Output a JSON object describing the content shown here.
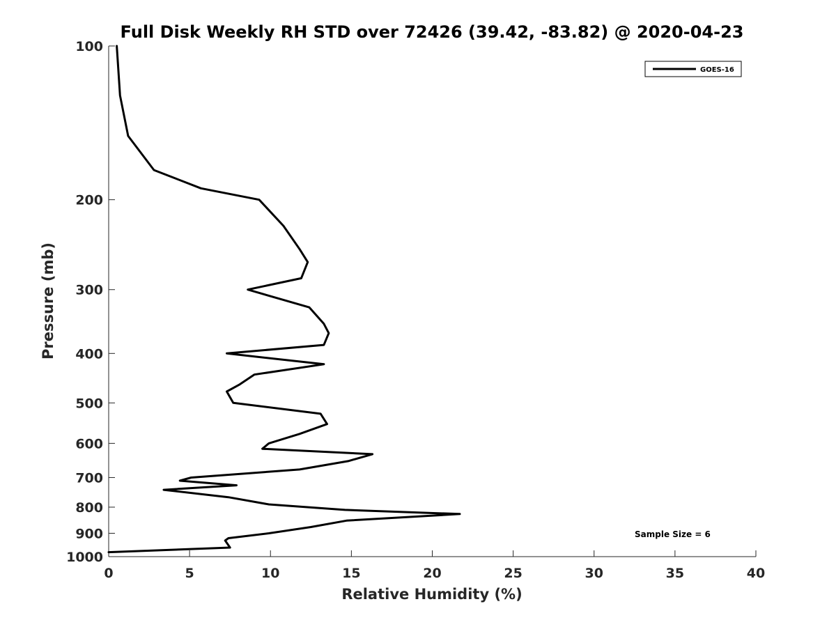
{
  "chart_data": {
    "type": "line",
    "title": "Full Disk Weekly RH STD over 72426 (39.42, -83.82) @ 2020-04-23",
    "xlabel": "Relative Humidity (%)",
    "ylabel": "Pressure (mb)",
    "xlim": [
      0,
      40
    ],
    "ylim": [
      1000,
      100
    ],
    "y_scale": "log",
    "x_ticks": [
      "0",
      "5",
      "10",
      "15",
      "20",
      "25",
      "30",
      "35",
      "40"
    ],
    "y_ticks": [
      "100",
      "200",
      "300",
      "400",
      "500",
      "600",
      "700",
      "800",
      "900",
      "1000"
    ],
    "grid": false,
    "legend_position": "top-right",
    "annotation": "Sample Size = 6",
    "series": [
      {
        "name": "GOES-16",
        "color": "#000000",
        "points": [
          [
            0.5,
            100
          ],
          [
            0.7,
            125
          ],
          [
            1.2,
            150
          ],
          [
            2.8,
            175
          ],
          [
            5.7,
            190
          ],
          [
            9.3,
            200
          ],
          [
            10.8,
            225
          ],
          [
            11.8,
            250
          ],
          [
            12.3,
            265
          ],
          [
            11.9,
            285
          ],
          [
            8.6,
            300
          ],
          [
            12.4,
            325
          ],
          [
            13.3,
            350
          ],
          [
            13.6,
            365
          ],
          [
            13.3,
            385
          ],
          [
            7.3,
            400
          ],
          [
            13.3,
            420
          ],
          [
            9.0,
            440
          ],
          [
            8.1,
            460
          ],
          [
            7.3,
            475
          ],
          [
            7.7,
            500
          ],
          [
            13.1,
            525
          ],
          [
            13.5,
            550
          ],
          [
            11.8,
            575
          ],
          [
            9.9,
            600
          ],
          [
            9.5,
            615
          ],
          [
            16.3,
            630
          ],
          [
            14.8,
            650
          ],
          [
            11.8,
            675
          ],
          [
            5.1,
            700
          ],
          [
            4.4,
            710
          ],
          [
            7.9,
            725
          ],
          [
            3.4,
            740
          ],
          [
            7.4,
            765
          ],
          [
            9.9,
            790
          ],
          [
            14.6,
            810
          ],
          [
            21.7,
            825
          ],
          [
            14.7,
            850
          ],
          [
            12.5,
            875
          ],
          [
            9.9,
            900
          ],
          [
            7.4,
            920
          ],
          [
            7.2,
            930
          ],
          [
            7.5,
            960
          ],
          [
            0,
            980
          ]
        ]
      }
    ]
  }
}
